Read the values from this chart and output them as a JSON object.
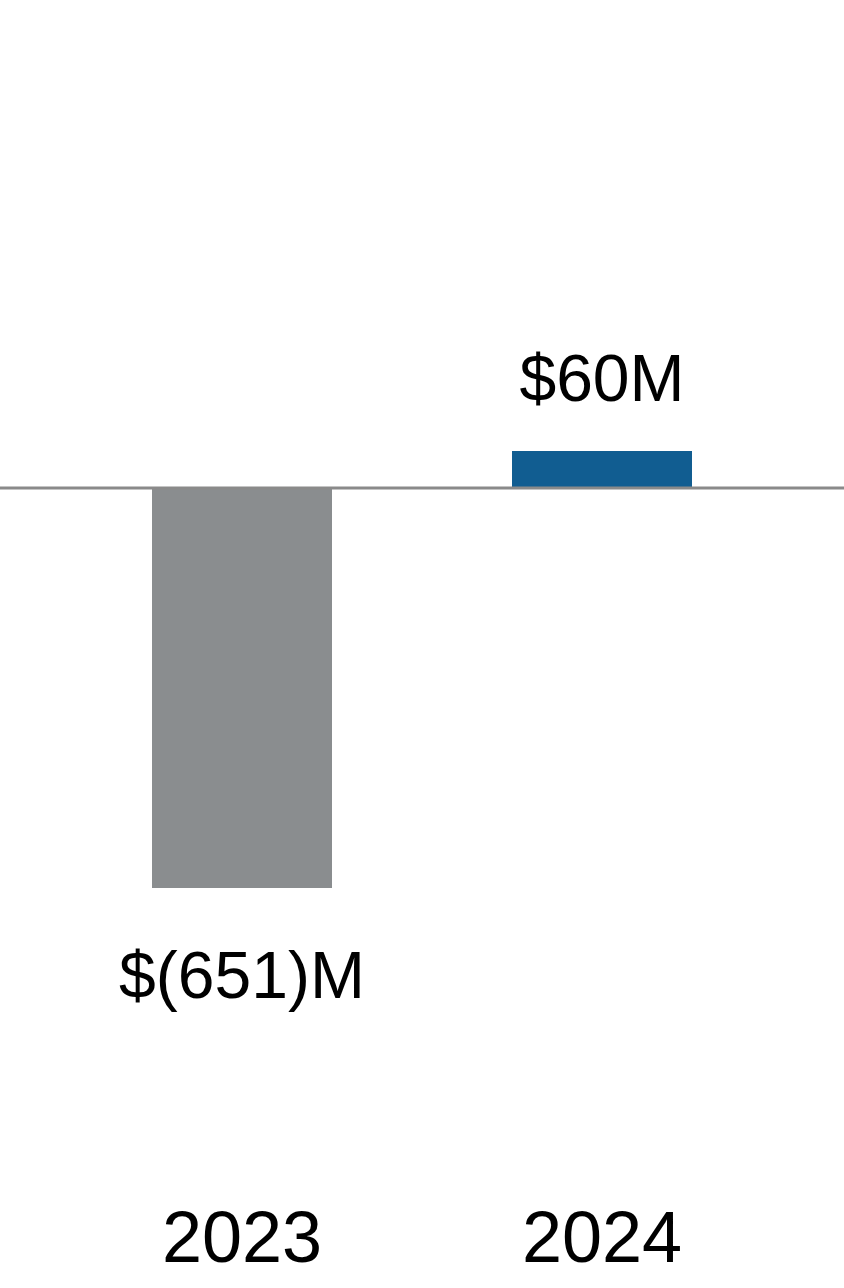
{
  "chart_data": {
    "type": "bar",
    "categories": [
      "2023",
      "2024"
    ],
    "values": [
      -651,
      60
    ],
    "colors": [
      "#8a8d8f",
      "#115d91"
    ],
    "value_labels": [
      "$(651)M",
      "$60M"
    ]
  }
}
